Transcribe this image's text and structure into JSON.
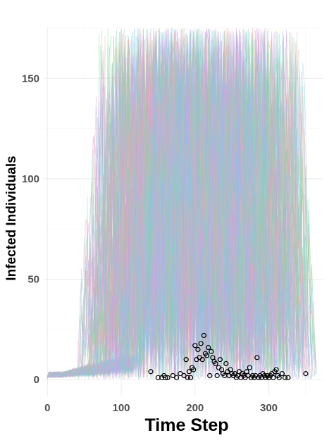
{
  "chart_data": {
    "type": "line",
    "title": "",
    "xlabel": "Time Step",
    "ylabel": "Infected Individuals",
    "xlim": [
      -5,
      373
    ],
    "ylim": [
      -8,
      175
    ],
    "x_ticks": [
      0,
      100,
      200,
      300
    ],
    "x_tick_labels": [
      "0",
      "100",
      "200",
      "300"
    ],
    "y_ticks": [
      0,
      50,
      100,
      150
    ],
    "y_tick_labels": [
      "0",
      "50",
      "100",
      "150"
    ],
    "grid": true,
    "legend": "none",
    "simulated_trajectories": {
      "description_visible": false,
      "x_range": [
        0,
        365
      ],
      "max_value": 175,
      "colors": [
        "#f08de6",
        "#7ec8f0",
        "#7fd89a",
        "#c9a5f0",
        "#e7b4a0",
        "#86d0d6"
      ]
    },
    "series": [
      {
        "type": "scatter",
        "marker": "open-circle",
        "color": "#000000",
        "points": [
          [
            140,
            4
          ],
          [
            150,
            1
          ],
          [
            155,
            1
          ],
          [
            158,
            2
          ],
          [
            160,
            1
          ],
          [
            163,
            1
          ],
          [
            170,
            2
          ],
          [
            175,
            1
          ],
          [
            180,
            3
          ],
          [
            185,
            2
          ],
          [
            188,
            10
          ],
          [
            190,
            1
          ],
          [
            192,
            4
          ],
          [
            194,
            1
          ],
          [
            196,
            6
          ],
          [
            198,
            5
          ],
          [
            200,
            17
          ],
          [
            202,
            10
          ],
          [
            204,
            15
          ],
          [
            206,
            11
          ],
          [
            208,
            18
          ],
          [
            210,
            10
          ],
          [
            212,
            22
          ],
          [
            214,
            13
          ],
          [
            216,
            12
          ],
          [
            218,
            16
          ],
          [
            220,
            2
          ],
          [
            222,
            14
          ],
          [
            224,
            11
          ],
          [
            226,
            9
          ],
          [
            228,
            8
          ],
          [
            230,
            2
          ],
          [
            232,
            6
          ],
          [
            234,
            10
          ],
          [
            236,
            5
          ],
          [
            238,
            3
          ],
          [
            240,
            2
          ],
          [
            242,
            8
          ],
          [
            244,
            4
          ],
          [
            246,
            2
          ],
          [
            248,
            5
          ],
          [
            250,
            3
          ],
          [
            252,
            2
          ],
          [
            254,
            3
          ],
          [
            256,
            1
          ],
          [
            258,
            2
          ],
          [
            260,
            4
          ],
          [
            262,
            1
          ],
          [
            264,
            3
          ],
          [
            266,
            2
          ],
          [
            268,
            1
          ],
          [
            270,
            4
          ],
          [
            272,
            2
          ],
          [
            274,
            6
          ],
          [
            276,
            1
          ],
          [
            278,
            2
          ],
          [
            280,
            1
          ],
          [
            282,
            2
          ],
          [
            284,
            11
          ],
          [
            286,
            1
          ],
          [
            288,
            2
          ],
          [
            290,
            1
          ],
          [
            292,
            3
          ],
          [
            294,
            2
          ],
          [
            296,
            1
          ],
          [
            298,
            2
          ],
          [
            300,
            1
          ],
          [
            302,
            2
          ],
          [
            304,
            3
          ],
          [
            306,
            1
          ],
          [
            308,
            4
          ],
          [
            310,
            5
          ],
          [
            312,
            2
          ],
          [
            314,
            1
          ],
          [
            318,
            3
          ],
          [
            322,
            1
          ],
          [
            326,
            1
          ],
          [
            350,
            3
          ]
        ]
      }
    ]
  }
}
